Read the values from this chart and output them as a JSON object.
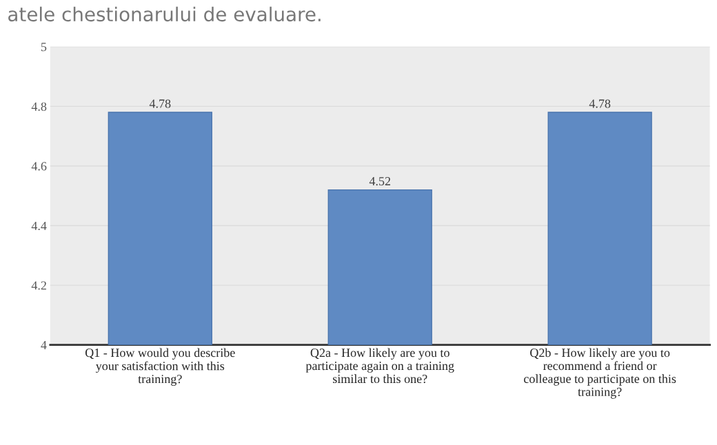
{
  "chart_data": {
    "type": "bar",
    "title": "atele chestionarului de evaluare.",
    "categories": [
      "Q1 - How would you describe\nyour satisfaction with this\ntraining?",
      "Q2a - How likely are you to\nparticipate again on a training\nsimilar to this one?",
      "Q2b - How likely are you to\nrecommend a friend or\ncolleague to participate on this\ntraining?"
    ],
    "values": [
      4.78,
      4.52,
      4.78
    ],
    "color": "#5f8ac3",
    "ylim": [
      4,
      5
    ],
    "yticks": [
      4,
      4.2,
      4.4,
      4.6,
      4.8,
      5
    ],
    "grid": "y",
    "data_labels": true
  }
}
